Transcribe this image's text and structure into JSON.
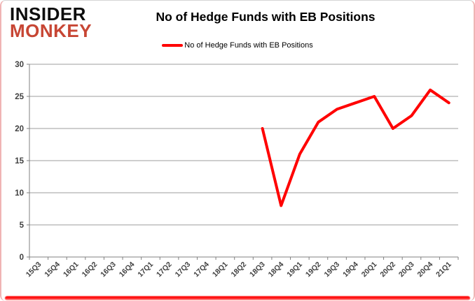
{
  "logo": {
    "line1": "INSIDER",
    "line2": "MONKEY",
    "color_top": "#0d0d0d",
    "color_bottom": "#c74634"
  },
  "header": {
    "title": "No of Hedge Funds with EB Positions"
  },
  "legend": {
    "label": "No of Hedge Funds with EB Positions",
    "color": "#ff0000"
  },
  "chart_data": {
    "type": "line",
    "title": "No of Hedge Funds with EB Positions",
    "categories": [
      "15Q3",
      "15Q4",
      "16Q1",
      "16Q2",
      "16Q3",
      "16Q4",
      "17Q1",
      "17Q2",
      "17Q3",
      "17Q4",
      "18Q1",
      "18Q2",
      "18Q3",
      "18Q4",
      "19Q1",
      "19Q2",
      "19Q3",
      "19Q4",
      "20Q1",
      "20Q2",
      "20Q3",
      "20Q4",
      "21Q1"
    ],
    "series": [
      {
        "name": "No of Hedge Funds with EB Positions",
        "color": "#ff0000",
        "values": [
          null,
          null,
          null,
          null,
          null,
          null,
          null,
          null,
          null,
          null,
          null,
          null,
          20,
          8,
          16,
          21,
          23,
          24,
          25,
          20,
          22,
          26,
          24
        ]
      }
    ],
    "xlabel": "",
    "ylabel": "",
    "ylim": [
      0,
      30
    ],
    "yticks": [
      0,
      5,
      10,
      15,
      20,
      25,
      30
    ],
    "grid": true,
    "legend_position": "top",
    "styles": {
      "gridline": "#9c9c9c",
      "axis": "#808080",
      "tick_text": "#404040"
    }
  }
}
